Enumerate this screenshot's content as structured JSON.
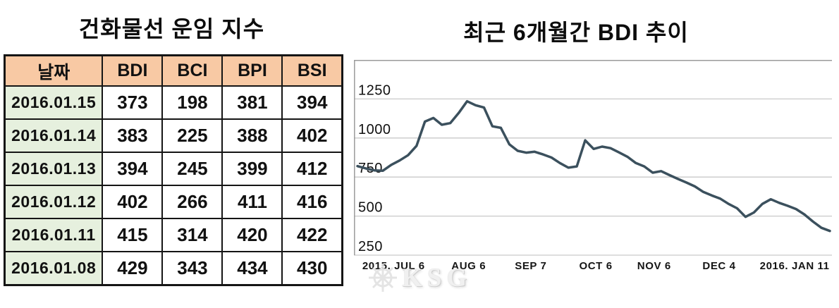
{
  "left_panel": {
    "title": "건화물선 운임 지수"
  },
  "freight_table": {
    "columns": [
      "날짜",
      "BDI",
      "BCI",
      "BPI",
      "BSI"
    ],
    "rows": [
      [
        "2016.01.15",
        "373",
        "198",
        "381",
        "394"
      ],
      [
        "2016.01.14",
        "383",
        "225",
        "388",
        "402"
      ],
      [
        "2016.01.13",
        "394",
        "245",
        "399",
        "412"
      ],
      [
        "2016.01.12",
        "402",
        "266",
        "411",
        "416"
      ],
      [
        "2016.01.11",
        "415",
        "314",
        "420",
        "422"
      ],
      [
        "2016.01.08",
        "429",
        "343",
        "434",
        "430"
      ]
    ],
    "colors": {
      "header_bg": "#f8c9a4",
      "date_col_bg": "#e6f0de",
      "border": "#151515"
    }
  },
  "chart_data": {
    "type": "line",
    "title": "최근 6개월간 BDI 추이",
    "xlabel": "",
    "ylabel": "",
    "grid": true,
    "legend": "none",
    "ylim": [
      250,
      1500
    ],
    "yticks": [
      250,
      500,
      750,
      1000,
      1250
    ],
    "xticks": [
      {
        "label": "2015. JUL 6",
        "pos": 0.083
      },
      {
        "label": "AUG 6",
        "pos": 0.24
      },
      {
        "label": "SEP 7",
        "pos": 0.37
      },
      {
        "label": "OCT 6",
        "pos": 0.506
      },
      {
        "label": "NOV 6",
        "pos": 0.628
      },
      {
        "label": "DEC 4",
        "pos": 0.764
      },
      {
        "label": "2016. JAN 11",
        "pos": 0.922
      }
    ],
    "series": [
      {
        "name": "BDI",
        "color": "#3b505d",
        "values": [
          820,
          805,
          793,
          790,
          828,
          856,
          890,
          950,
          1105,
          1128,
          1085,
          1095,
          1160,
          1235,
          1210,
          1195,
          1075,
          1065,
          960,
          918,
          906,
          912,
          895,
          875,
          840,
          810,
          818,
          985,
          930,
          945,
          935,
          908,
          880,
          840,
          818,
          778,
          788,
          762,
          738,
          715,
          690,
          655,
          632,
          612,
          578,
          550,
          495,
          523,
          578,
          608,
          585,
          566,
          545,
          510,
          465,
          425,
          405
        ]
      }
    ],
    "colors": {
      "gridline": "#c9c9c9",
      "axis_border": "#9b9b9b"
    }
  },
  "watermark": {
    "text": "KSG",
    "icon": "ship-wheel-icon"
  }
}
